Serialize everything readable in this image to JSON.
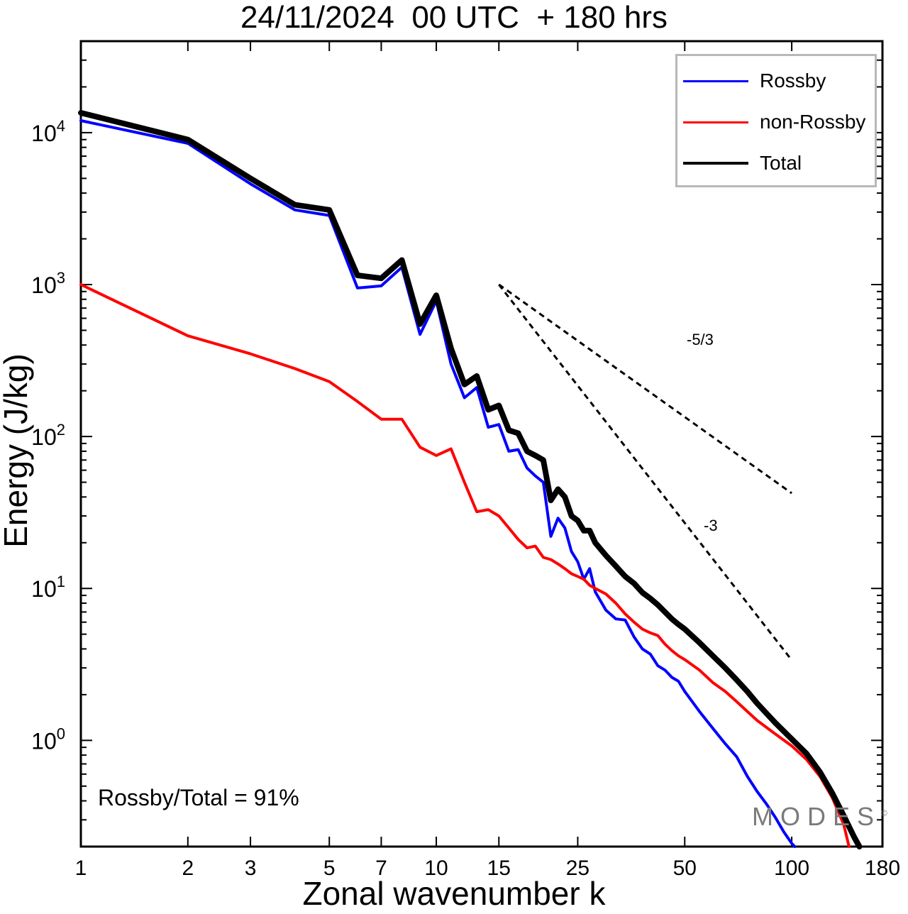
{
  "chart_data": {
    "type": "line",
    "title": "24/11/2024  00 UTC  + 180 hrs",
    "xlabel": "Zonal wavenumber k",
    "ylabel": "Energy (J/kg)",
    "xscale": "log",
    "yscale": "log",
    "xlim": [
      1,
      180
    ],
    "ylim": [
      0.2,
      40000
    ],
    "xticks": [
      1,
      2,
      3,
      5,
      7,
      10,
      15,
      25,
      50,
      100,
      180
    ],
    "xtick_labels": [
      "1",
      "2",
      "3",
      "5",
      "7",
      "10",
      "15",
      "25",
      "50",
      "100",
      "180"
    ],
    "yticks": [
      1,
      10,
      100,
      1000,
      10000
    ],
    "ytick_labels": [
      {
        "base": "10",
        "exp": "0"
      },
      {
        "base": "10",
        "exp": "1"
      },
      {
        "base": "10",
        "exp": "2"
      },
      {
        "base": "10",
        "exp": "3"
      },
      {
        "base": "10",
        "exp": "4"
      }
    ],
    "grid": false,
    "legend_position": "top-right",
    "series": [
      {
        "name": "Rossby",
        "color": "#0000ff",
        "x": [
          1,
          2,
          3,
          4,
          5,
          6,
          7,
          8,
          9,
          10,
          11,
          12,
          13,
          14,
          15,
          16,
          17,
          18,
          19,
          20,
          21,
          22,
          23,
          24,
          25,
          26,
          27,
          28,
          30,
          32,
          34,
          36,
          38,
          40,
          42,
          44,
          46,
          48,
          50,
          55,
          60,
          65,
          70,
          75,
          80,
          85,
          90,
          95,
          100,
          102
        ],
        "y": [
          12000,
          8500,
          4600,
          3100,
          2850,
          950,
          980,
          1300,
          470,
          780,
          300,
          180,
          210,
          115,
          120,
          80,
          82,
          62,
          55,
          50,
          22,
          29,
          25,
          17.5,
          15,
          11.5,
          13.5,
          9.5,
          7.2,
          6.3,
          6.2,
          4.8,
          4.0,
          3.7,
          3.1,
          2.9,
          2.6,
          2.45,
          2.1,
          1.55,
          1.2,
          0.95,
          0.78,
          0.58,
          0.46,
          0.38,
          0.31,
          0.25,
          0.21,
          0.2
        ]
      },
      {
        "name": "non-Rossby",
        "color": "#ff0000",
        "x": [
          1,
          2,
          3,
          4,
          5,
          6,
          7,
          8,
          9,
          10,
          11,
          12,
          13,
          14,
          15,
          16,
          17,
          18,
          19,
          20,
          21,
          22,
          23,
          24,
          25,
          26,
          27,
          28,
          30,
          32,
          34,
          36,
          38,
          40,
          42,
          44,
          46,
          48,
          50,
          55,
          60,
          65,
          70,
          75,
          80,
          90,
          100,
          110,
          120,
          130,
          140,
          145
        ],
        "y": [
          1000,
          460,
          350,
          280,
          230,
          170,
          130,
          130,
          85,
          75,
          83,
          50,
          32,
          33,
          30,
          25,
          21,
          18.5,
          19,
          16,
          15.5,
          14.5,
          13.5,
          12.5,
          12,
          11.5,
          10.5,
          10,
          9.2,
          8.0,
          6.8,
          6.0,
          5.4,
          5.1,
          4.9,
          4.3,
          3.9,
          3.6,
          3.4,
          2.9,
          2.4,
          2.1,
          1.8,
          1.55,
          1.35,
          1.1,
          0.92,
          0.75,
          0.58,
          0.42,
          0.28,
          0.2
        ]
      },
      {
        "name": "Total",
        "color": "#000000",
        "x": [
          1,
          2,
          3,
          4,
          5,
          6,
          7,
          8,
          9,
          10,
          11,
          12,
          13,
          14,
          15,
          16,
          17,
          18,
          19,
          20,
          21,
          22,
          23,
          24,
          25,
          26,
          27,
          28,
          30,
          32,
          34,
          36,
          38,
          40,
          42,
          44,
          46,
          48,
          50,
          55,
          60,
          65,
          70,
          75,
          80,
          90,
          100,
          110,
          120,
          130,
          140,
          150,
          155
        ],
        "y": [
          13500,
          9000,
          5000,
          3350,
          3100,
          1150,
          1100,
          1450,
          550,
          850,
          380,
          220,
          250,
          150,
          160,
          110,
          105,
          80,
          75,
          70,
          38,
          45,
          40,
          30,
          28,
          24,
          24,
          20,
          16.5,
          14,
          12,
          10.8,
          9.4,
          8.6,
          7.8,
          7.0,
          6.3,
          5.8,
          5.4,
          4.4,
          3.6,
          3.0,
          2.5,
          2.1,
          1.75,
          1.3,
          1.02,
          0.82,
          0.62,
          0.45,
          0.32,
          0.23,
          0.2
        ]
      }
    ],
    "reference_lines": [
      {
        "label": "-5/3",
        "slope": -1.6667,
        "x0": 15,
        "y0": 1000,
        "x1": 100
      },
      {
        "label": "-3",
        "slope": -3,
        "x0": 15,
        "y0": 1000,
        "x1": 100
      }
    ],
    "annotations": [
      "Rossby/Total = 91%"
    ]
  },
  "watermark": {
    "text": "MODES",
    "mark": "©"
  },
  "colors": {
    "rossby": "#0000ff",
    "non_rossby": "#ff0000",
    "total": "#000000"
  }
}
